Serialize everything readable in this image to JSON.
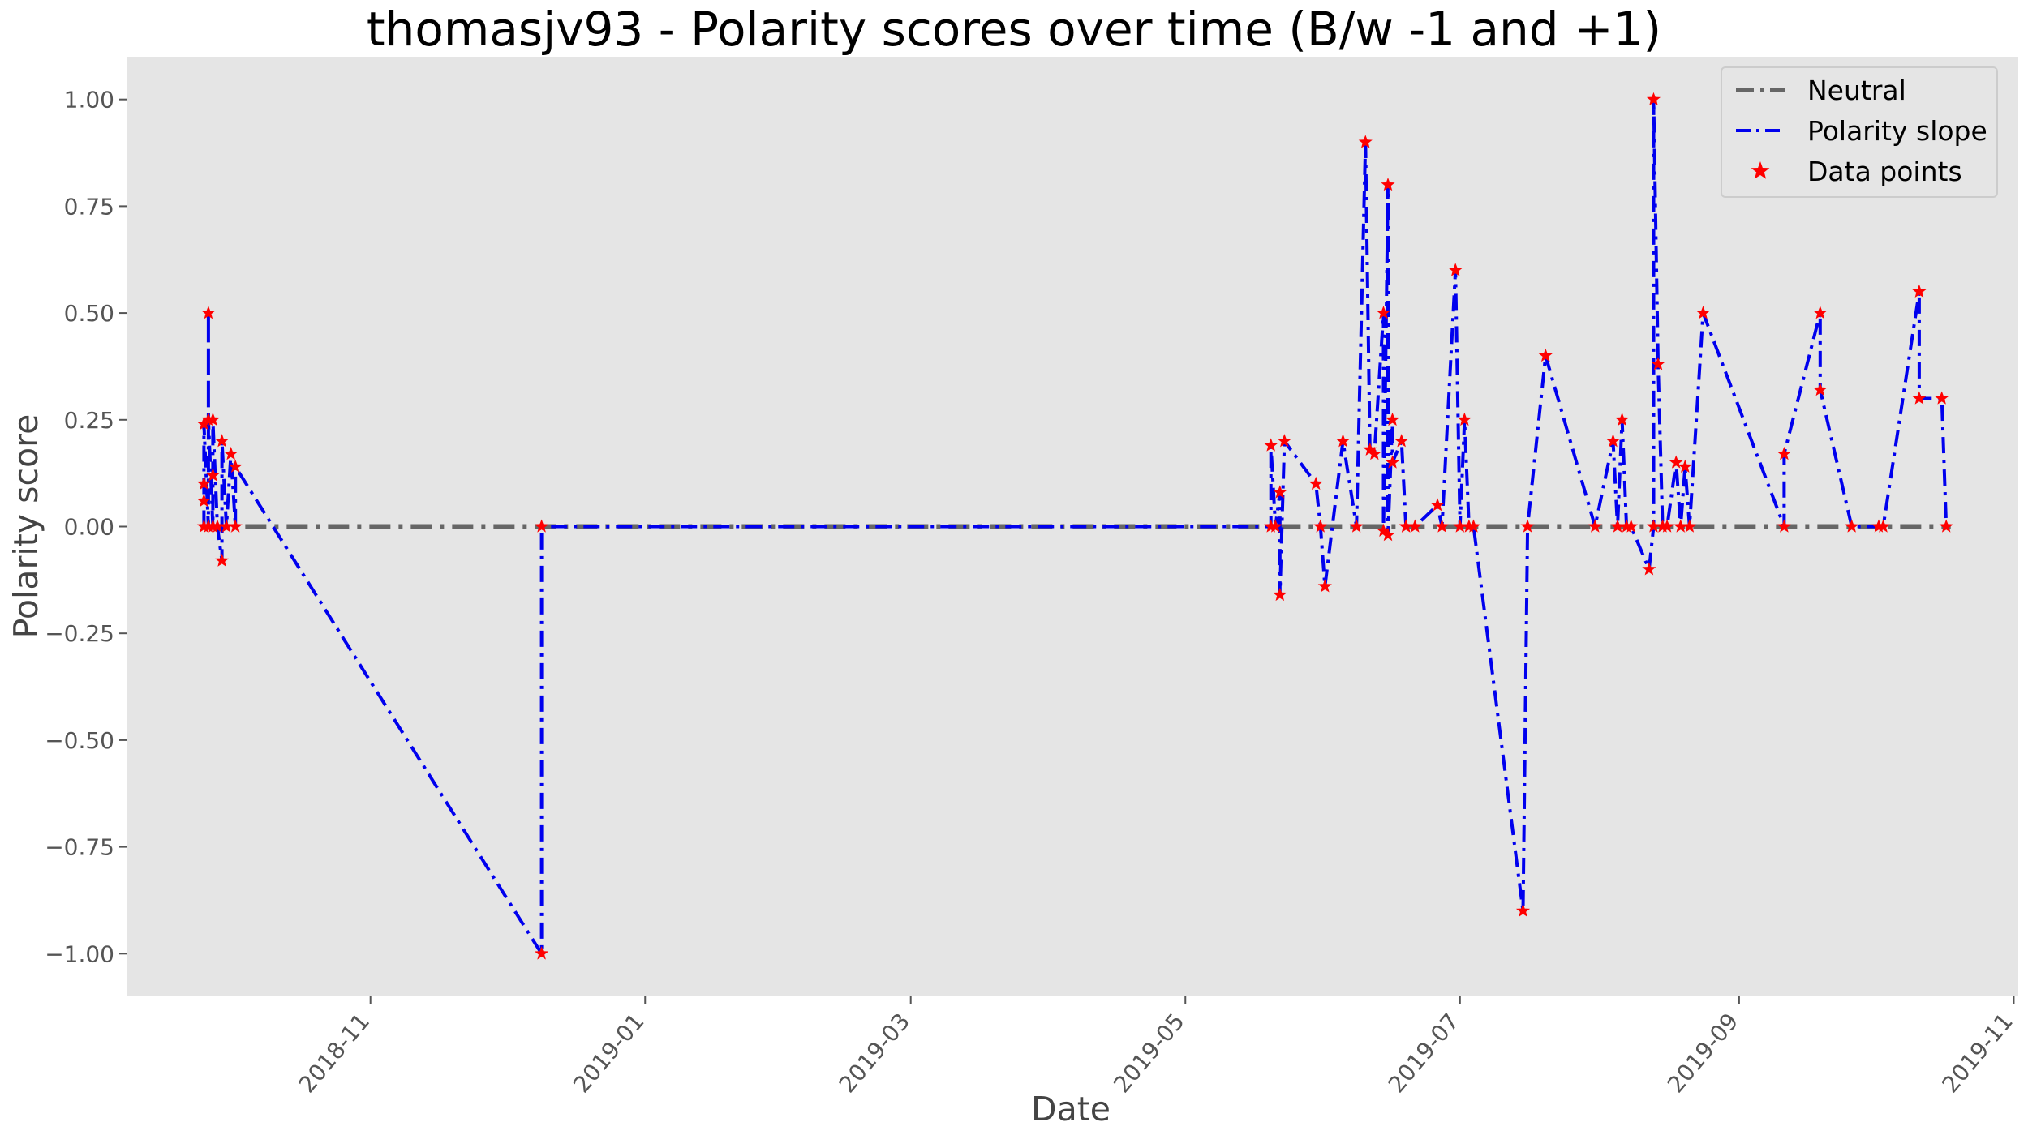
{
  "chart_data": {
    "type": "line",
    "title": "thomasjv93 - Polarity scores over time (B/w -1 and +1)",
    "xlabel": "Date",
    "ylabel": "Polarity score",
    "xlim": [
      "2018-09-08",
      "2019-11-02"
    ],
    "ylim": [
      -1.1,
      1.1
    ],
    "grid": false,
    "legend_position": "top-right",
    "background": "#e5e5e5",
    "x_ticks": [
      {
        "value": "2018-11-01",
        "label": "2018-11"
      },
      {
        "value": "2019-01-01",
        "label": "2019-01"
      },
      {
        "value": "2019-03-01",
        "label": "2019-03"
      },
      {
        "value": "2019-05-01",
        "label": "2019-05"
      },
      {
        "value": "2019-07-01",
        "label": "2019-07"
      },
      {
        "value": "2019-09-01",
        "label": "2019-09"
      },
      {
        "value": "2019-11-01",
        "label": "2019-11"
      }
    ],
    "y_ticks": [
      {
        "value": 1.0,
        "label": "1.00"
      },
      {
        "value": 0.75,
        "label": "0.75"
      },
      {
        "value": 0.5,
        "label": "0.50"
      },
      {
        "value": 0.25,
        "label": "0.25"
      },
      {
        "value": 0.0,
        "label": "0.00"
      },
      {
        "value": -0.25,
        "label": "−0.25"
      },
      {
        "value": -0.5,
        "label": "−0.50"
      },
      {
        "value": -0.75,
        "label": "−0.75"
      },
      {
        "value": -1.0,
        "label": "−1.00"
      }
    ],
    "series": [
      {
        "name": "Neutral",
        "kind": "line",
        "style": "dashdot",
        "color": "#666666",
        "x": [
          "2018-09-25",
          "2019-10-18"
        ],
        "y": [
          0,
          0
        ]
      },
      {
        "name": "Polarity slope",
        "kind": "line",
        "style": "dashdot",
        "color": "#0000ee",
        "x": [
          "2018-09-25",
          "2018-09-25",
          "2018-09-25",
          "2018-09-25",
          "2018-09-26",
          "2018-09-26",
          "2018-09-26",
          "2018-09-27",
          "2018-09-27",
          "2018-09-27",
          "2018-09-28",
          "2018-09-29",
          "2018-09-29",
          "2018-09-30",
          "2018-10-01",
          "2018-10-02",
          "2018-10-02",
          "2018-12-09",
          "2018-12-09",
          "2019-05-20",
          "2019-05-20",
          "2019-05-21",
          "2019-05-22",
          "2019-05-22",
          "2019-05-23",
          "2019-05-30",
          "2019-05-31",
          "2019-06-01",
          "2019-06-05",
          "2019-06-08",
          "2019-06-10",
          "2019-06-11",
          "2019-06-12",
          "2019-06-14",
          "2019-06-14",
          "2019-06-15",
          "2019-06-15",
          "2019-06-16",
          "2019-06-16",
          "2019-06-18",
          "2019-06-19",
          "2019-06-19",
          "2019-06-21",
          "2019-06-26",
          "2019-06-27",
          "2019-06-30",
          "2019-07-01",
          "2019-07-02",
          "2019-07-03",
          "2019-07-04",
          "2019-07-15",
          "2019-07-16",
          "2019-07-20",
          "2019-07-31",
          "2019-08-04",
          "2019-08-05",
          "2019-08-06",
          "2019-08-07",
          "2019-08-08",
          "2019-08-12",
          "2019-08-13",
          "2019-08-13",
          "2019-08-14",
          "2019-08-15",
          "2019-08-16",
          "2019-08-18",
          "2019-08-19",
          "2019-08-20",
          "2019-08-21",
          "2019-08-24",
          "2019-09-11",
          "2019-09-11",
          "2019-09-19",
          "2019-09-19",
          "2019-09-26",
          "2019-10-02",
          "2019-10-03",
          "2019-10-11",
          "2019-10-11",
          "2019-10-16",
          "2019-10-17"
        ],
        "y": [
          0,
          0.06,
          0.1,
          0.24,
          0,
          0.5,
          0.25,
          0,
          0.12,
          0.25,
          0,
          -0.08,
          0.2,
          0,
          0.17,
          0,
          0.14,
          -1,
          0,
          0,
          0.19,
          0,
          0.08,
          -0.16,
          0.2,
          0.1,
          0,
          -0.14,
          0.2,
          0,
          0.9,
          0.18,
          0.17,
          0.5,
          -0.01,
          0.8,
          -0.02,
          0.25,
          0.15,
          0.2,
          0,
          0,
          0,
          0.05,
          0,
          0.6,
          0,
          0.25,
          0,
          0,
          -0.9,
          0,
          0.4,
          0,
          0.2,
          0,
          0.25,
          0,
          0,
          -0.1,
          0,
          1,
          0.38,
          0,
          0,
          0.15,
          0,
          0.14,
          0,
          0.5,
          0,
          0.17,
          0.5,
          0.32,
          0,
          0,
          0,
          0.55,
          0.3,
          0.3,
          0
        ]
      },
      {
        "name": "Data points",
        "kind": "scatter",
        "marker": "star",
        "color": "#ff0000"
      }
    ]
  }
}
